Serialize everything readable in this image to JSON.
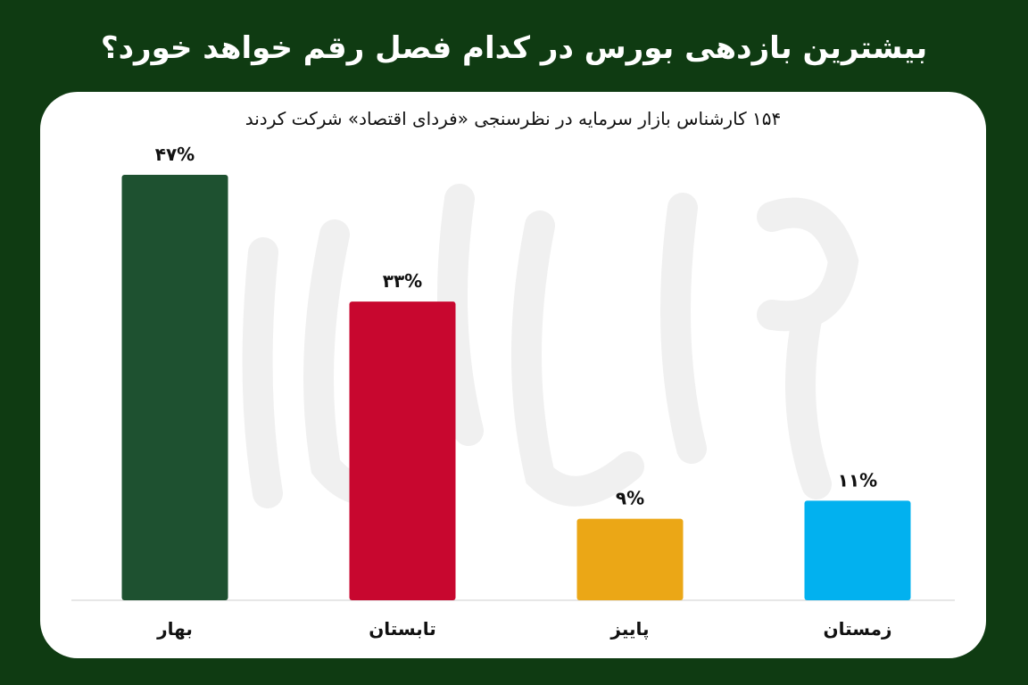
{
  "title": "بیشترین بازدهی بورس در کدام فصل رقم خواهد خورد؟",
  "subtitle": "۱۵۴ کارشناس بازار سرمایه در نظرسنجی «فردای اقتصاد» شرکت کردند",
  "watermark": "فردای اقتصاد",
  "colors": {
    "background": "#0f3b12",
    "card": "#ffffff"
  },
  "chart_data": {
    "type": "bar",
    "title": "بیشترین بازدهی بورس در کدام فصل رقم خواهد خورد؟",
    "subtitle": "۱۵۴ کارشناس بازار سرمایه در نظرسنجی «فردای اقتصاد» شرکت کردند",
    "categories": [
      "بهار",
      "تابستان",
      "پاییز",
      "زمستان"
    ],
    "values": [
      47,
      33,
      9,
      11
    ],
    "data_labels": [
      "۴۷%",
      "۳۳%",
      "۹%",
      "۱۱%"
    ],
    "colors": [
      "#1e5130",
      "#c8072f",
      "#eba716",
      "#02b1ef"
    ],
    "unit": "%",
    "ylim": [
      0,
      47
    ],
    "grid": false,
    "legend": "none"
  }
}
